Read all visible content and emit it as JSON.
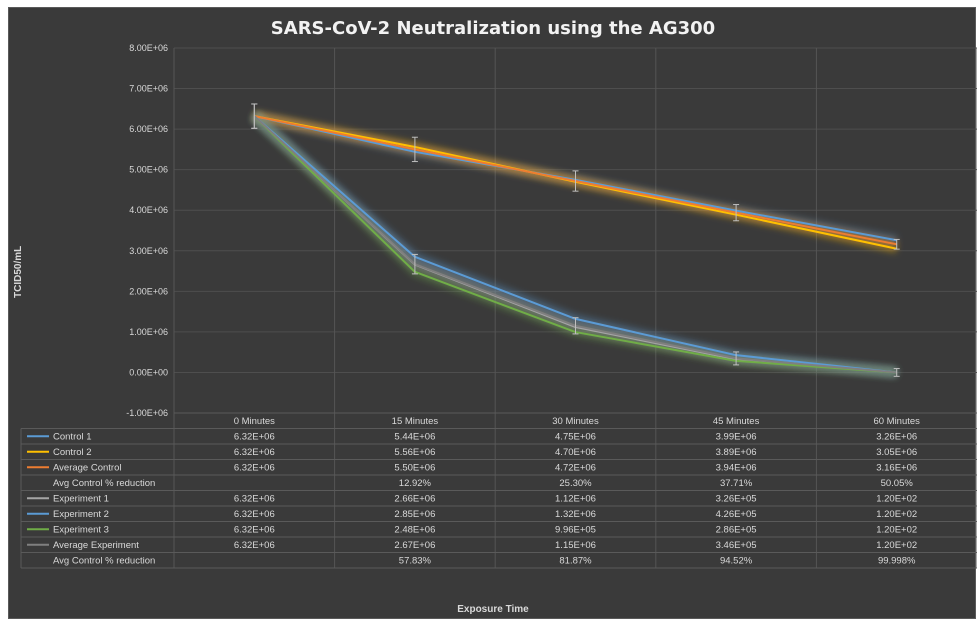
{
  "chart_data": {
    "type": "line",
    "title": "SARS-CoV-2 Neutralization using the AG300",
    "xlabel": "Exposure Time",
    "ylabel": "TCID50/mL",
    "categories": [
      "0 Minutes",
      "15 Minutes",
      "30 Minutes",
      "45 Minutes",
      "60 Minutes"
    ],
    "ylim": [
      -1000000,
      8000000
    ],
    "yticks": [
      "-1.00E+06",
      "0.00E+00",
      "1.00E+06",
      "2.00E+06",
      "3.00E+06",
      "4.00E+06",
      "5.00E+06",
      "6.00E+06",
      "7.00E+06",
      "8.00E+06"
    ],
    "grid": true,
    "legend": "data table below plot",
    "series": [
      {
        "name": "Control 1",
        "color": "#5b9bd5",
        "values": [
          6320000,
          5440000,
          4750000,
          3990000,
          3260000
        ]
      },
      {
        "name": "Control 2",
        "color": "#ffc000",
        "values": [
          6320000,
          5560000,
          4700000,
          3890000,
          3050000
        ]
      },
      {
        "name": "Average Control",
        "color": "#ed7d31",
        "values": [
          6320000,
          5500000,
          4720000,
          3940000,
          3160000
        ]
      },
      {
        "name": "Experiment 1",
        "color": "#a5a5a5",
        "values": [
          6320000,
          2660000,
          1120000,
          326000,
          120
        ]
      },
      {
        "name": "Experiment 2",
        "color": "#5b9bd5",
        "values": [
          6320000,
          2850000,
          1320000,
          426000,
          120
        ]
      },
      {
        "name": "Experiment 3",
        "color": "#70ad47",
        "values": [
          6320000,
          2480000,
          996000,
          286000,
          120
        ]
      },
      {
        "name": "Average Experiment",
        "color": "#7f7f7f",
        "values": [
          6320000,
          2670000,
          1150000,
          346000,
          120
        ]
      }
    ],
    "table": {
      "rows": [
        {
          "label": "Control 1",
          "color": "#5b9bd5",
          "cells": [
            "6.32E+06",
            "5.44E+06",
            "4.75E+06",
            "3.99E+06",
            "3.26E+06"
          ]
        },
        {
          "label": "Control 2",
          "color": "#ffc000",
          "cells": [
            "6.32E+06",
            "5.56E+06",
            "4.70E+06",
            "3.89E+06",
            "3.05E+06"
          ]
        },
        {
          "label": "Average Control",
          "color": "#ed7d31",
          "cells": [
            "6.32E+06",
            "5.50E+06",
            "4.72E+06",
            "3.94E+06",
            "3.16E+06"
          ]
        },
        {
          "label": "Avg Control % reduction",
          "color": "",
          "cells": [
            "",
            "12.92%",
            "25.30%",
            "37.71%",
            "50.05%"
          ]
        },
        {
          "label": "Experiment 1",
          "color": "#a5a5a5",
          "cells": [
            "6.32E+06",
            "2.66E+06",
            "1.12E+06",
            "3.26E+05",
            "1.20E+02"
          ]
        },
        {
          "label": "Experiment 2",
          "color": "#5b9bd5",
          "cells": [
            "6.32E+06",
            "2.85E+06",
            "1.32E+06",
            "4.26E+05",
            "1.20E+02"
          ]
        },
        {
          "label": "Experiment 3",
          "color": "#70ad47",
          "cells": [
            "6.32E+06",
            "2.48E+06",
            "9.96E+05",
            "2.86E+05",
            "1.20E+02"
          ]
        },
        {
          "label": "Average Experiment",
          "color": "#7f7f7f",
          "cells": [
            "6.32E+06",
            "2.67E+06",
            "1.15E+06",
            "3.46E+05",
            "1.20E+02"
          ]
        },
        {
          "label": "Avg Control % reduction",
          "color": "",
          "cells": [
            "",
            "57.83%",
            "81.87%",
            "94.52%",
            "99.998%"
          ]
        }
      ]
    }
  }
}
